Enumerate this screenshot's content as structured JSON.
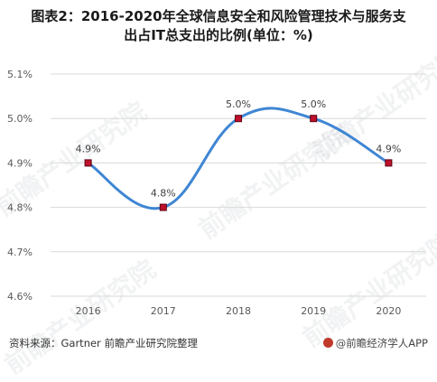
{
  "title_line1": "图表2：2016-2020年全球信息安全和风险管理技术与服务支",
  "title_line2": "出占IT总支出的比例(单位：%)",
  "watermark_text": "前瞻产业研究院",
  "footer": {
    "source": "资料来源：Gartner 前瞻产业研究院整理",
    "brand": "@前瞻经济学人APP"
  },
  "colors": {
    "line": "#3f86d4",
    "marker": "#c0102c",
    "grid": "#d9d9d9",
    "text": "#595959"
  },
  "chart_data": {
    "type": "line",
    "categories": [
      "2016",
      "2017",
      "2018",
      "2019",
      "2020"
    ],
    "series": [
      {
        "values": [
          4.9,
          4.8,
          5.0,
          5.0,
          4.9
        ],
        "labels": [
          "4.9%",
          "4.8%",
          "5.0%",
          "5.0%",
          "4.9%"
        ]
      }
    ],
    "yticks": [
      "4.6%",
      "4.7%",
      "4.8%",
      "4.9%",
      "5.0%",
      "5.1%"
    ],
    "ylim": [
      4.6,
      5.1
    ],
    "smooth": true,
    "grid": "horizontal"
  }
}
